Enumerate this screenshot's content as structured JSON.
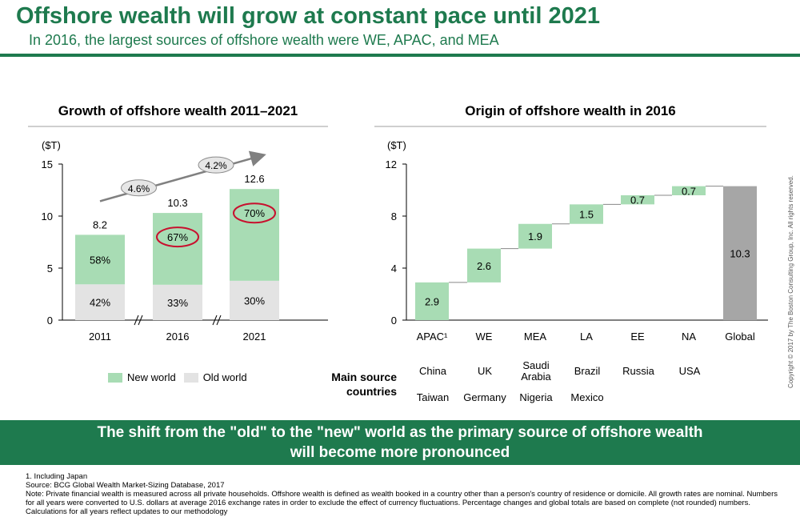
{
  "title": "Offshore wealth will grow at constant pace until 2021",
  "subtitle": "In 2016, the largest sources of offshore wealth were WE, APAC, and MEA",
  "colors": {
    "brand": "#1e7a4e",
    "new_world": "#a8dcb4",
    "old_world": "#e3e3e3",
    "global_bar": "#a6a6a6",
    "circle": "#c8102e"
  },
  "chart_data": [
    {
      "type": "bar",
      "title": "Growth of offshore wealth 2011–2021",
      "unit_label": "($T)",
      "ylim": [
        0,
        15
      ],
      "yticks": [
        "0",
        "5",
        "10",
        "15"
      ],
      "categories": [
        "2011",
        "2016",
        "2021"
      ],
      "totals": [
        8.2,
        10.3,
        12.6
      ],
      "total_labels": [
        "8.2",
        "10.3",
        "12.6"
      ],
      "series": [
        {
          "name": "Old world",
          "share_labels": [
            "42%",
            "33%",
            "30%"
          ],
          "values": [
            3.44,
            3.4,
            3.78
          ]
        },
        {
          "name": "New world",
          "share_labels": [
            "58%",
            "67%",
            "70%"
          ],
          "values": [
            4.76,
            6.9,
            8.82
          ]
        }
      ],
      "growth_labels": [
        "4.6%",
        "4.2%"
      ],
      "legend": [
        "New world",
        "Old world"
      ]
    },
    {
      "type": "bar",
      "title": "Origin of offshore wealth in 2016",
      "unit_label": "($T)",
      "ylim": [
        0,
        12
      ],
      "yticks": [
        "0",
        "4",
        "8",
        "12"
      ],
      "categories": [
        "APAC¹",
        "WE",
        "MEA",
        "LA",
        "EE",
        "NA",
        "Global"
      ],
      "values": [
        2.9,
        2.6,
        1.9,
        1.5,
        0.7,
        0.7,
        10.3
      ],
      "value_labels": [
        "2.9",
        "2.6",
        "1.9",
        "1.5",
        "0.7",
        "0.7",
        "10.3"
      ]
    }
  ],
  "main_source": {
    "label_line1": "Main source",
    "label_line2": "countries",
    "row1": [
      "China",
      "UK",
      "Saudi\nArabia",
      "Brazil",
      "Russia",
      "USA"
    ],
    "row2": [
      "Taiwan",
      "Germany",
      "Nigeria",
      "Mexico",
      "",
      ""
    ]
  },
  "copyright": "Copyright © 2017 by The Boston Consulting Group, Inc. All rights reserved.",
  "banner": {
    "line1": "The shift from the \"old\" to the \"new\" world as the primary source of offshore wealth",
    "line2": "will become more pronounced"
  },
  "footnotes": [
    "1. Including Japan",
    "Source: BCG Global Wealth Market-Sizing Database, 2017",
    "Note: Private financial wealth is measured across all private households. Offshore wealth is defined as wealth booked in a country other than a person's country of residence or domicile. All growth rates are nominal. Numbers for all years were converted to U.S. dollars at average 2016 exchange rates in order to exclude the effect of currency fluctuations. Percentage changes and global totals are based on complete (not rounded) numbers. Calculations for all years reflect updates to our methodology"
  ]
}
